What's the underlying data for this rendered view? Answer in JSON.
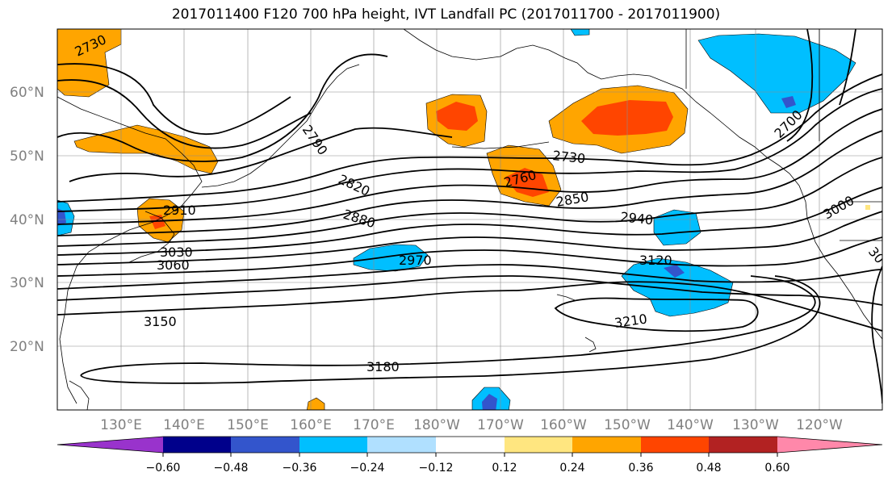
{
  "title": "2017011400 F120 700 hPa height, IVT Landfall PC (2017011700 - 2017011900)",
  "lat_labels": [
    "60°N",
    "50°N",
    "40°N",
    "30°N",
    "20°N"
  ],
  "lon_labels": [
    "130°E",
    "140°E",
    "150°E",
    "160°E",
    "170°E",
    "180°W",
    "170°W",
    "160°W",
    "150°W",
    "140°W",
    "130°W",
    "120°W"
  ],
  "contour_labels": [
    "2730",
    "2790",
    "2820",
    "2880",
    "2910",
    "3030",
    "3060",
    "3150",
    "2970",
    "2760",
    "2730",
    "2850",
    "2940",
    "3120",
    "3210",
    "3180",
    "2700",
    "3000",
    "30"
  ],
  "colorbar": {
    "ticks": [
      "−0.60",
      "−0.48",
      "−0.36",
      "−0.24",
      "−0.12",
      "0.12",
      "0.24",
      "0.36",
      "0.48",
      "0.60"
    ],
    "colors": [
      "#9933cc",
      "#00008b",
      "#3355cc",
      "#00bfff",
      "#b0e0ff",
      "#ffffff",
      "#ffe680",
      "#ffa500",
      "#ff4500",
      "#b22222",
      "#ff88aa"
    ]
  }
}
